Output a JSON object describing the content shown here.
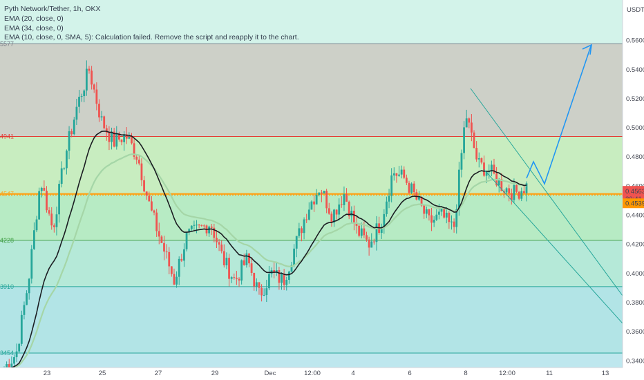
{
  "chart_data": {
    "type": "candlestick",
    "legend": {
      "title": "Pyth Network/Tether, 1h, OKX",
      "indicators": [
        "EMA (20, close, 0)",
        "EMA (34, close, 0)",
        "EMA (10, close, 0, SMA, 5): Calculation failed. Remove the script and reapply it to the chart."
      ]
    },
    "currency": "USDT",
    "y_ticks": [
      "0.5600",
      "0.5400",
      "0.5200",
      "0.5000",
      "0.4800",
      "0.4600",
      "0.4400",
      "0.4200",
      "0.4000",
      "0.3800",
      "0.3600",
      "0.3400"
    ],
    "y_range": [
      0.334,
      0.578
    ],
    "x_ticks": [
      "23",
      "25",
      "27",
      "29",
      "Dec",
      "12:00",
      "4",
      "6",
      "8",
      "12:00",
      "11",
      "13"
    ],
    "price_labels": {
      "current": "0.4563",
      "countdown": "30:41",
      "level": "0.4539"
    },
    "fib_labels": [
      "5577",
      "4941",
      "4547",
      "4228",
      "3910",
      "3454"
    ],
    "fib_levels": [
      0.5577,
      0.4941,
      0.4547,
      0.4228,
      0.391,
      0.3454
    ],
    "zones": [
      {
        "from": 0.5577,
        "to": 0.4941,
        "color": "#cdd0c8"
      },
      {
        "from": 0.4941,
        "to": 0.4547,
        "color": "#c8edc0"
      },
      {
        "from": 0.4547,
        "to": 0.4228,
        "color": "#b7ebc4"
      },
      {
        "from": 0.4228,
        "to": 0.391,
        "color": "#b5e9d8"
      },
      {
        "from": 0.391,
        "to": 0.3454,
        "color": "#b2e4e6"
      }
    ],
    "key_prices": [
      0.335,
      0.345,
      0.395,
      0.465,
      0.43,
      0.48,
      0.515,
      0.54,
      0.505,
      0.49,
      0.495,
      0.48,
      0.445,
      0.42,
      0.395,
      0.425,
      0.43,
      0.435,
      0.41,
      0.395,
      0.41,
      0.385,
      0.4,
      0.395,
      0.42,
      0.445,
      0.46,
      0.44,
      0.455,
      0.43,
      0.42,
      0.435,
      0.47,
      0.465,
      0.45,
      0.435,
      0.44,
      0.43,
      0.51,
      0.475,
      0.47,
      0.46,
      0.455,
      0.46
    ],
    "colors": {
      "up": "#26a69a",
      "down": "#ef5350",
      "ema20": "#1b1d22",
      "ema34": "#a5d6a7",
      "projection": "#2196f3",
      "channel": "#26a69a"
    }
  }
}
